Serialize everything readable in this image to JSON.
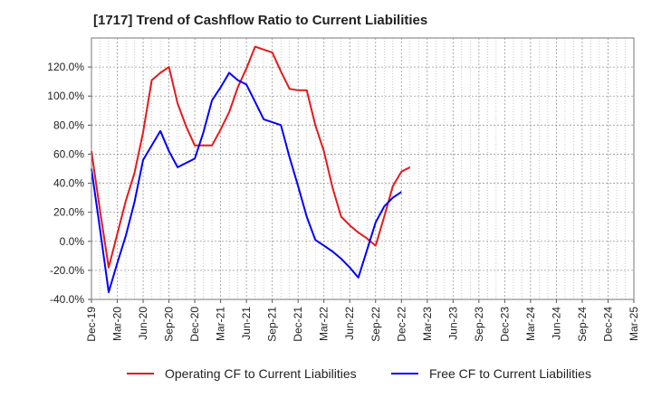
{
  "chart_data": {
    "type": "line",
    "title": "[1717]  Trend of Cashflow Ratio to Current Liabilities",
    "xlabel": "",
    "ylabel": "",
    "x_ticks": [
      "Dec-19",
      "Mar-20",
      "Jun-20",
      "Sep-20",
      "Dec-20",
      "Mar-21",
      "Jun-21",
      "Sep-21",
      "Dec-21",
      "Mar-22",
      "Jun-22",
      "Sep-22",
      "Dec-22",
      "Mar-23",
      "Jun-23",
      "Sep-23",
      "Dec-23",
      "Mar-24",
      "Jun-24",
      "Sep-24",
      "Dec-24",
      "Mar-25"
    ],
    "y_ticks": [
      "-40.0%",
      "-20.0%",
      "0.0%",
      "20.0%",
      "40.0%",
      "60.0%",
      "80.0%",
      "100.0%",
      "120.0%"
    ],
    "ylim": [
      -40,
      140
    ],
    "grid": true,
    "legend_position": "bottom",
    "series": [
      {
        "name": "Operating CF to Current Liabilities",
        "color": "#e41a1c",
        "points": [
          [
            0,
            62
          ],
          [
            1,
            21
          ],
          [
            2,
            -18
          ],
          [
            3,
            5
          ],
          [
            4,
            28
          ],
          [
            5,
            47
          ],
          [
            6,
            75
          ],
          [
            7,
            111
          ],
          [
            8,
            116
          ],
          [
            9,
            120
          ],
          [
            10,
            95
          ],
          [
            11,
            79
          ],
          [
            12,
            66
          ],
          [
            13,
            66
          ],
          [
            14,
            66
          ],
          [
            15,
            77
          ],
          [
            16,
            89
          ],
          [
            17,
            106
          ],
          [
            18,
            119
          ],
          [
            19,
            134
          ],
          [
            20,
            132
          ],
          [
            21,
            130
          ],
          [
            22,
            117
          ],
          [
            23,
            105
          ],
          [
            24,
            104
          ],
          [
            25,
            104
          ],
          [
            26,
            80
          ],
          [
            27,
            62
          ],
          [
            28,
            37
          ],
          [
            29,
            17
          ],
          [
            30,
            11
          ],
          [
            31,
            6
          ],
          [
            32,
            2
          ],
          [
            33,
            -3
          ],
          [
            34,
            17
          ],
          [
            35,
            38
          ],
          [
            36,
            48
          ],
          [
            37,
            51
          ]
        ]
      },
      {
        "name": "Free CF to Current Liabilities",
        "color": "#0000ff",
        "points": [
          [
            0,
            50
          ],
          [
            1,
            8
          ],
          [
            2,
            -35
          ],
          [
            3,
            -15
          ],
          [
            4,
            4
          ],
          [
            5,
            27
          ],
          [
            6,
            56
          ],
          [
            7,
            66
          ],
          [
            8,
            76
          ],
          [
            9,
            62
          ],
          [
            10,
            51
          ],
          [
            11,
            54
          ],
          [
            12,
            57
          ],
          [
            13,
            75
          ],
          [
            14,
            97
          ],
          [
            15,
            106
          ],
          [
            16,
            116
          ],
          [
            17,
            111
          ],
          [
            18,
            108
          ],
          [
            19,
            96
          ],
          [
            20,
            84
          ],
          [
            21,
            82
          ],
          [
            22,
            80
          ],
          [
            23,
            58
          ],
          [
            24,
            38
          ],
          [
            25,
            17
          ],
          [
            26,
            1
          ],
          [
            27,
            -3
          ],
          [
            28,
            -7
          ],
          [
            29,
            -12
          ],
          [
            30,
            -18
          ],
          [
            31,
            -25
          ],
          [
            32,
            -6
          ],
          [
            33,
            13
          ],
          [
            34,
            24
          ],
          [
            35,
            30
          ],
          [
            36,
            34
          ]
        ]
      }
    ]
  }
}
